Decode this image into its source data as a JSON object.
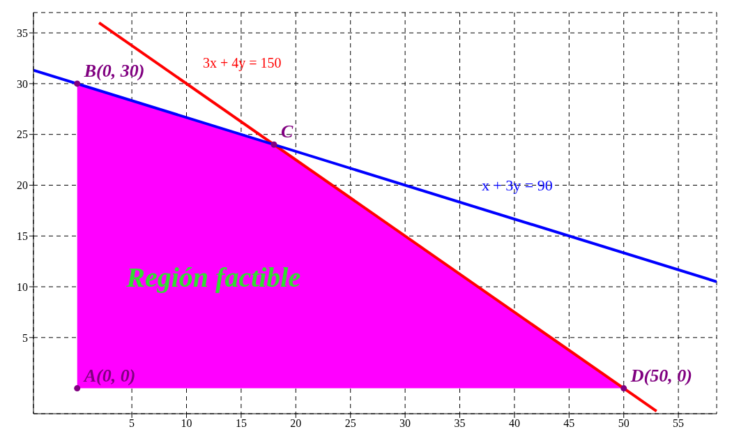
{
  "chart_data": {
    "type": "line",
    "xlim": [
      -4,
      58.5
    ],
    "ylim": [
      -2.5,
      37
    ],
    "xticks": [
      5,
      10,
      15,
      20,
      25,
      30,
      35,
      40,
      45,
      50,
      55
    ],
    "yticks": [
      5,
      10,
      15,
      20,
      25,
      30,
      35
    ],
    "grid": true,
    "series": [
      {
        "type": "area",
        "color": "#ff00ff",
        "x": [
          0,
          18,
          50
        ],
        "values": [
          30,
          24,
          0
        ]
      },
      {
        "color": "#ff0000",
        "x": [
          2,
          53
        ],
        "values": [
          36,
          -2.25
        ]
      },
      {
        "color": "#0000ff",
        "x": [
          -4,
          58.5
        ],
        "values": [
          31.33,
          10.5
        ]
      },
      {
        "type": "scatter",
        "color": "#800080",
        "x": [
          0,
          0,
          18,
          50
        ],
        "values": [
          0,
          30,
          24,
          0
        ],
        "marker": "circle"
      }
    ],
    "annotations": [
      {
        "text": "A(0, 0)",
        "x": 0,
        "y": 0
      },
      {
        "text": "B(0, 30)",
        "x": 0,
        "y": 30
      },
      {
        "text": "C",
        "x": 18,
        "y": 24
      },
      {
        "text": "D(50, 0)",
        "x": 50,
        "y": 0
      },
      "3x + 4y = 150",
      "x + 3y = 90",
      "Región factible"
    ]
  }
}
